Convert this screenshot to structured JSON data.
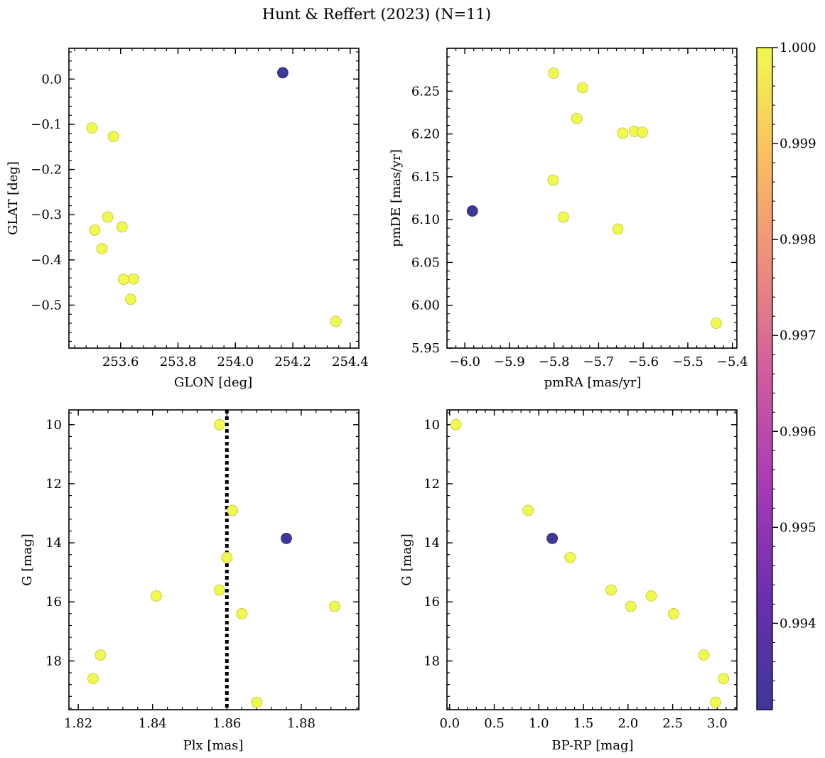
{
  "title": "Hunt & Reffert (2023) (N=11)",
  "colorbar": {
    "ticks": [
      0.994,
      0.995,
      0.996,
      0.997,
      0.998,
      0.999,
      1.0
    ],
    "tick_labels": [
      "0.994",
      "0.995",
      "0.996",
      "0.997",
      "0.998",
      "0.999",
      "1.000"
    ],
    "range": [
      0.9931,
      1.0
    ],
    "colormap": "plasma",
    "low_color": "#3d3797",
    "high_color": "#f0f94f"
  },
  "chart_data": [
    {
      "type": "scatter",
      "xlabel": "GLON [deg]",
      "ylabel": "GLAT [deg]",
      "xlim": [
        253.42,
        254.43
      ],
      "ylim": [
        -0.595,
        0.068
      ],
      "x_ticks": [
        253.6,
        253.8,
        254.0,
        254.2,
        254.4
      ],
      "x_tick_labels": [
        "253.6",
        "253.8",
        "254.0",
        "254.2",
        "254.4"
      ],
      "y_ticks": [
        0.0,
        -0.1,
        -0.2,
        -0.3,
        -0.4,
        -0.5
      ],
      "y_tick_labels": [
        "0.0",
        "−0.1",
        "−0.2",
        "−0.3",
        "−0.4",
        "−0.5"
      ],
      "x": [
        254.165,
        253.5,
        253.575,
        253.555,
        253.51,
        253.605,
        253.535,
        253.645,
        253.61,
        253.635,
        254.35
      ],
      "y": [
        0.014,
        -0.108,
        -0.127,
        -0.305,
        -0.334,
        -0.327,
        -0.375,
        -0.442,
        -0.443,
        -0.487,
        -0.536
      ],
      "c": [
        0.9931,
        1,
        1,
        1,
        1,
        1,
        1,
        1,
        1,
        1,
        1
      ]
    },
    {
      "type": "scatter",
      "xlabel": "pmRA [mas/yr]",
      "ylabel": "pmDE [mas/yr]",
      "xlim": [
        -6.04,
        -5.39
      ],
      "ylim": [
        5.95,
        6.3
      ],
      "x_ticks": [
        -6.0,
        -5.9,
        -5.8,
        -5.7,
        -5.6,
        -5.5,
        -5.4
      ],
      "x_tick_labels": [
        "−6.0",
        "−5.9",
        "−5.8",
        "−5.7",
        "−5.6",
        "−5.5",
        "−5.4"
      ],
      "y_ticks": [
        5.95,
        6.0,
        6.05,
        6.1,
        6.15,
        6.2,
        6.25
      ],
      "y_tick_labels": [
        "5.95",
        "6.00",
        "6.05",
        "6.10",
        "6.15",
        "6.20",
        "6.25"
      ],
      "x": [
        -5.983,
        -5.801,
        -5.736,
        -5.749,
        -5.646,
        -5.62,
        -5.602,
        -5.802,
        -5.779,
        -5.657,
        -5.436
      ],
      "y": [
        6.11,
        6.271,
        6.254,
        6.218,
        6.201,
        6.203,
        6.202,
        6.146,
        6.103,
        6.089,
        5.979
      ],
      "c": [
        0.9931,
        1,
        1,
        1,
        1,
        1,
        1,
        1,
        1,
        1,
        1
      ]
    },
    {
      "type": "scatter",
      "xlabel": "Plx [mas]",
      "ylabel": "G [mag]",
      "xlim": [
        1.8175,
        1.8955
      ],
      "ylim": [
        19.65,
        9.5
      ],
      "y_inverted": true,
      "x_ticks": [
        1.82,
        1.84,
        1.86,
        1.88
      ],
      "x_tick_labels": [
        "1.82",
        "1.84",
        "1.86",
        "1.88"
      ],
      "y_ticks": [
        10,
        12,
        14,
        16,
        18
      ],
      "y_tick_labels": [
        "10",
        "12",
        "14",
        "16",
        "18"
      ],
      "vline": 1.86,
      "x": [
        1.876,
        1.858,
        1.8615,
        1.86,
        1.858,
        1.841,
        1.889,
        1.864,
        1.826,
        1.824,
        1.868
      ],
      "y": [
        13.85,
        10.0,
        12.9,
        14.5,
        15.6,
        15.8,
        16.15,
        16.4,
        17.8,
        18.6,
        19.4
      ],
      "c": [
        0.9931,
        1,
        1,
        1,
        1,
        1,
        1,
        1,
        1,
        1,
        1
      ]
    },
    {
      "type": "scatter",
      "xlabel": "BP-RP [mag]",
      "ylabel": "G [mag]",
      "xlim": [
        -0.03,
        3.22
      ],
      "ylim": [
        19.65,
        9.5
      ],
      "y_inverted": true,
      "x_ticks": [
        0.0,
        0.5,
        1.0,
        1.5,
        2.0,
        2.5,
        3.0
      ],
      "x_tick_labels": [
        "0.0",
        "0.5",
        "1.0",
        "1.5",
        "2.0",
        "2.5",
        "3.0"
      ],
      "y_ticks": [
        10,
        12,
        14,
        16,
        18
      ],
      "y_tick_labels": [
        "10",
        "12",
        "14",
        "16",
        "18"
      ],
      "x": [
        1.15,
        0.07,
        0.88,
        1.35,
        1.81,
        2.03,
        2.26,
        2.51,
        2.85,
        3.07,
        2.98
      ],
      "y": [
        13.85,
        10.0,
        12.9,
        14.5,
        15.6,
        16.15,
        15.8,
        16.4,
        17.8,
        18.6,
        19.4
      ],
      "c": [
        0.9931,
        1,
        1,
        1,
        1,
        1,
        1,
        1,
        1,
        1,
        1
      ]
    }
  ]
}
